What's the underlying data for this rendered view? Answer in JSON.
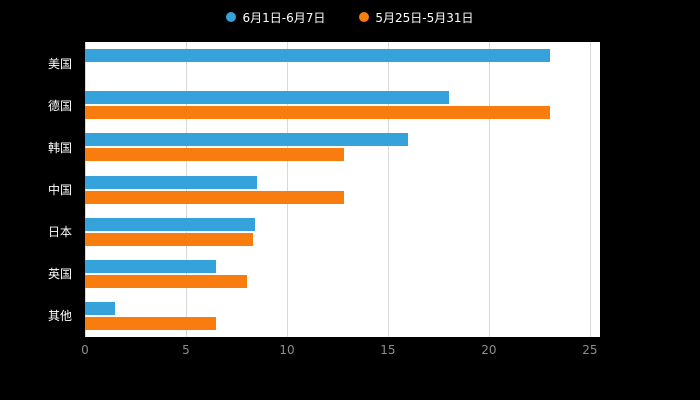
{
  "legend": {
    "items": [
      {
        "label": "6月1日-6月7日",
        "color": "#36A2DB"
      },
      {
        "label": "5月25日-5月31日",
        "color": "#F87D0E"
      }
    ]
  },
  "chart_data": {
    "type": "bar",
    "orientation": "horizontal",
    "title": "",
    "categories": [
      "美国",
      "德国",
      "韩国",
      "中国",
      "日本",
      "英国",
      "其他"
    ],
    "series": [
      {
        "name": "6月1日-6月7日",
        "color": "#36A2DB",
        "values": [
          23,
          18,
          16,
          8.5,
          8.4,
          6.5,
          1.5
        ]
      },
      {
        "name": "5月25日-5月31日",
        "color": "#F87D0E",
        "values": [
          0,
          23,
          12.8,
          12.8,
          8.3,
          8,
          6.5
        ]
      }
    ],
    "xlim": [
      0,
      25.5
    ],
    "xticks": [
      0,
      5,
      10,
      15,
      20,
      25
    ],
    "grid": true,
    "legend_position": "top",
    "colors": {
      "page_bg": "#000000",
      "plot_bg": "#ffffff",
      "grid_color": "#d9d9d9",
      "tick_label_color": "#8c8c8c",
      "category_label_color": "#ffffff"
    }
  }
}
